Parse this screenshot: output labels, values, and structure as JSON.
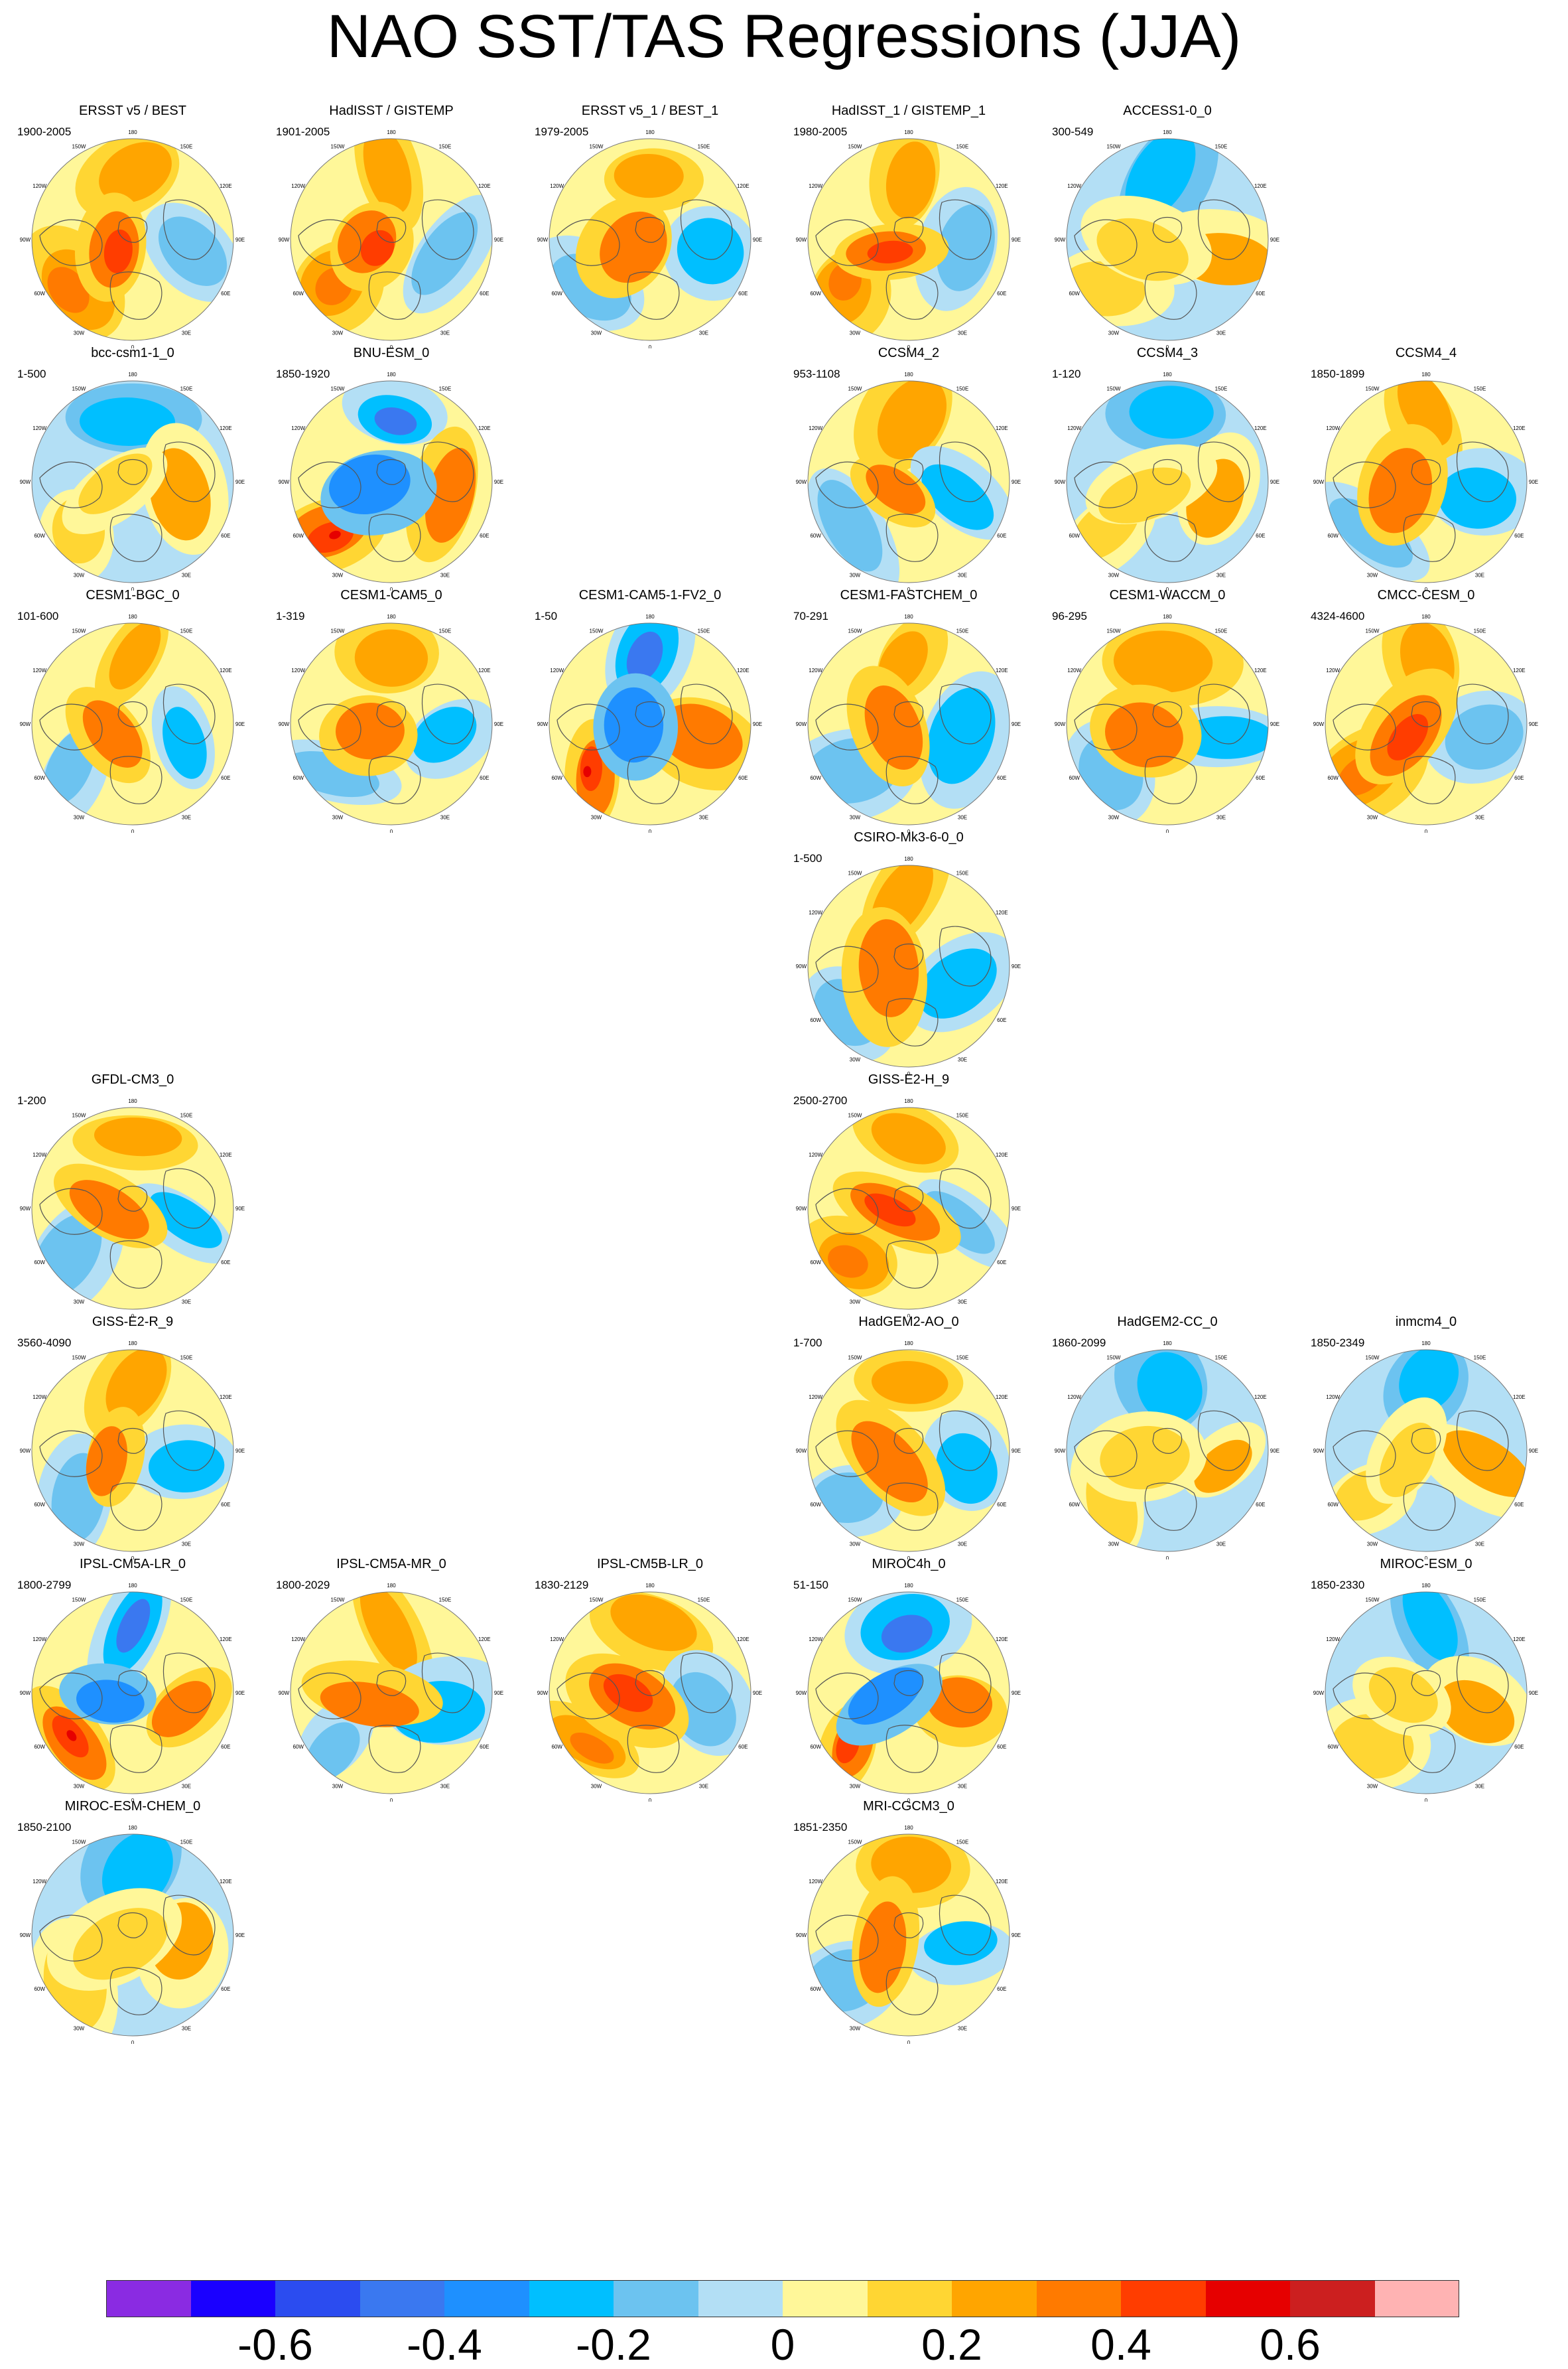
{
  "title": "NAO SST/TAS Regressions (JJA)",
  "map_labels": {
    "lon_180": "180",
    "lon_150w": "150W",
    "lon_120w": "120W",
    "lon_90w": "90W",
    "lon_60w": "60W",
    "lon_30w": "30W",
    "lon_0": "0",
    "lon_30e": "30E",
    "lon_60e": "60E",
    "lon_90e": "90E",
    "lon_120e": "120E",
    "lon_150e": "150E"
  },
  "colors": {
    "ocean_land_outline": "#555555",
    "land_mask": "#ffffff"
  },
  "colorbar": {
    "colors": [
      "#8a2be2",
      "#1a00ff",
      "#2b4cf0",
      "#3a78f0",
      "#1e90ff",
      "#00bfff",
      "#6cc3f0",
      "#b3dff5",
      "#fff799",
      "#ffd633",
      "#ffa500",
      "#ff7a00",
      "#ff3d00",
      "#e60000",
      "#cc1f1f",
      "#ffb3b3"
    ],
    "tick_labels": [
      "-0.6",
      "-0.4",
      "-0.2",
      "0",
      "0.2",
      "0.4",
      "0.6"
    ],
    "tick_edges": [
      2,
      4,
      6,
      8,
      10,
      12,
      14
    ]
  },
  "panels": [
    {
      "title": "ERSST v5 / BEST",
      "years": "1900-2005",
      "row": 0,
      "col": 0,
      "pattern": "warm"
    },
    {
      "title": "HadISST / GISTEMP",
      "years": "1901-2005",
      "row": 0,
      "col": 1,
      "pattern": "warm"
    },
    {
      "title": "ERSST v5_1 / BEST_1",
      "years": "1979-2005",
      "row": 0,
      "col": 2,
      "pattern": "mixed"
    },
    {
      "title": "HadISST_1 / GISTEMP_1",
      "years": "1980-2005",
      "row": 0,
      "col": 3,
      "pattern": "warm"
    },
    {
      "title": "ACCESS1-0_0",
      "years": "300-549",
      "row": 0,
      "col": 4,
      "pattern": "cool"
    },
    {
      "title": "bcc-csm1-1_0",
      "years": "1-500",
      "row": 1,
      "col": 0,
      "pattern": "cool"
    },
    {
      "title": "BNU-ESM_0",
      "years": "1850-1920",
      "row": 1,
      "col": 1,
      "pattern": "strong"
    },
    {
      "title": "CCSM4_2",
      "years": "953-1108",
      "row": 1,
      "col": 3,
      "pattern": "mixed"
    },
    {
      "title": "CCSM4_3",
      "years": "1-120",
      "row": 1,
      "col": 4,
      "pattern": "cool"
    },
    {
      "title": "CCSM4_4",
      "years": "1850-1899",
      "row": 1,
      "col": 5,
      "pattern": "mixed"
    },
    {
      "title": "CESM1-BGC_0",
      "years": "101-600",
      "row": 2,
      "col": 0,
      "pattern": "mixed"
    },
    {
      "title": "CESM1-CAM5_0",
      "years": "1-319",
      "row": 2,
      "col": 1,
      "pattern": "mixed"
    },
    {
      "title": "CESM1-CAM5-1-FV2_0",
      "years": "1-50",
      "row": 2,
      "col": 2,
      "pattern": "strong"
    },
    {
      "title": "CESM1-FASTCHEM_0",
      "years": "70-291",
      "row": 2,
      "col": 3,
      "pattern": "mixed"
    },
    {
      "title": "CESM1-WACCM_0",
      "years": "96-295",
      "row": 2,
      "col": 4,
      "pattern": "mixed"
    },
    {
      "title": "CMCC-CESM_0",
      "years": "4324-4600",
      "row": 2,
      "col": 5,
      "pattern": "warm"
    },
    {
      "title": "CSIRO-Mk3-6-0_0",
      "years": "1-500",
      "row": 3,
      "col": 3,
      "pattern": "mixed"
    },
    {
      "title": "GFDL-CM3_0",
      "years": "1-200",
      "row": 4,
      "col": 0,
      "pattern": "mixed"
    },
    {
      "title": "GISS-E2-H_9",
      "years": "2500-2700",
      "row": 4,
      "col": 3,
      "pattern": "warm"
    },
    {
      "title": "GISS-E2-R_9",
      "years": "3560-4090",
      "row": 5,
      "col": 0,
      "pattern": "mixed"
    },
    {
      "title": "HadGEM2-AO_0",
      "years": "1-700",
      "row": 5,
      "col": 3,
      "pattern": "mixed"
    },
    {
      "title": "HadGEM2-CC_0",
      "years": "1860-2099",
      "row": 5,
      "col": 4,
      "pattern": "cool"
    },
    {
      "title": "inmcm4_0",
      "years": "1850-2349",
      "row": 5,
      "col": 5,
      "pattern": "cool"
    },
    {
      "title": "IPSL-CM5A-LR_0",
      "years": "1800-2799",
      "row": 6,
      "col": 0,
      "pattern": "strong"
    },
    {
      "title": "IPSL-CM5A-MR_0",
      "years": "1800-2029",
      "row": 6,
      "col": 1,
      "pattern": "mixed"
    },
    {
      "title": "IPSL-CM5B-LR_0",
      "years": "1830-2129",
      "row": 6,
      "col": 2,
      "pattern": "warm"
    },
    {
      "title": "MIROC4h_0",
      "years": "51-150",
      "row": 6,
      "col": 3,
      "pattern": "strong"
    },
    {
      "title": "MIROC-ESM_0",
      "years": "1850-2330",
      "row": 6,
      "col": 5,
      "pattern": "cool"
    },
    {
      "title": "MIROC-ESM-CHEM_0",
      "years": "1850-2100",
      "row": 7,
      "col": 0,
      "pattern": "cool"
    },
    {
      "title": "MRI-CGCM3_0",
      "years": "1851-2350",
      "row": 7,
      "col": 3,
      "pattern": "mixed"
    }
  ]
}
